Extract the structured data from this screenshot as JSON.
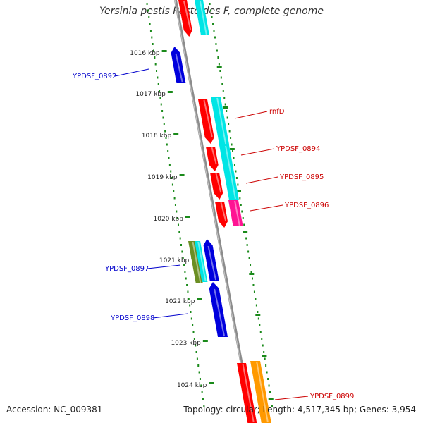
{
  "title": "Yersinia pestis Pestoides F, complete genome",
  "footer": {
    "accession": "Accession: NC_009381",
    "topology": "Topology: circular; Length: 4,517,345 bp; Genes: 3,954"
  },
  "colors": {
    "backbone": "#8c8c8c",
    "tick": "#1a8a1a",
    "reverse_label": "#0000cc",
    "forward_label": "#cc0000",
    "red": "#ff0000",
    "cyan": "#00e5e5",
    "blue": "#0000dd",
    "magenta": "#ff1493",
    "olive": "#6b8e23",
    "orange": "#ff9900",
    "white": "#ffffff"
  },
  "ticks": [
    {
      "label": "1016 kbp"
    },
    {
      "label": "1017 kbp"
    },
    {
      "label": "1018 kbp"
    },
    {
      "label": "1019 kbp"
    },
    {
      "label": "1020 kbp"
    },
    {
      "label": "1021 kbp"
    },
    {
      "label": "1022 kbp"
    },
    {
      "label": "1023 kbp"
    },
    {
      "label": "1024 kbp"
    }
  ],
  "gene_labels": [
    {
      "text": "YPDSF_0892",
      "strand": "reverse"
    },
    {
      "text": "rnfD",
      "strand": "forward"
    },
    {
      "text": "YPDSF_0894",
      "strand": "forward"
    },
    {
      "text": "YPDSF_0895",
      "strand": "forward"
    },
    {
      "text": "YPDSF_0896",
      "strand": "forward"
    },
    {
      "text": "YPDSF_0897",
      "strand": "reverse"
    },
    {
      "text": "YPDSF_0898",
      "strand": "reverse"
    },
    {
      "text": "YPDSF_0899",
      "strand": "forward"
    }
  ]
}
